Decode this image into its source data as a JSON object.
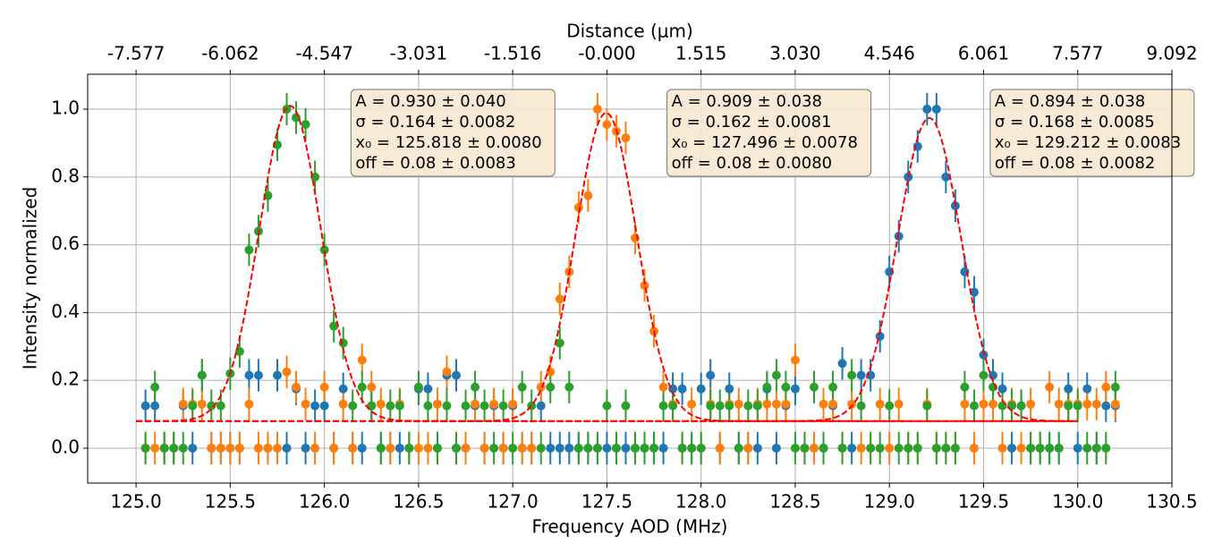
{
  "chart_data": {
    "type": "scatter",
    "xlabel": "Frequency AOD (MHz)",
    "ylabel": "Intensity normalized",
    "x2label": "Distance (μm)",
    "xlim": [
      124.743,
      130.5
    ],
    "ylim": [
      -0.103,
      1.103
    ],
    "x2lim": [
      -8.356,
      9.092
    ],
    "xticks": [
      {
        "value": 125,
        "label": "125.0"
      },
      125.5,
      {
        "value": 126,
        "label": "126.0"
      },
      126.5,
      {
        "value": 127,
        "label": "127.0"
      },
      127.5,
      {
        "value": 128,
        "label": "128.0"
      },
      128.5,
      {
        "value": 129,
        "label": "129.0"
      },
      129.5,
      {
        "value": 130,
        "label": "130.0"
      },
      130.5
    ],
    "yticks": [
      {
        "value": 0,
        "label": "0.0"
      },
      0.2,
      0.4,
      0.6,
      0.8,
      {
        "value": 1,
        "label": "1.0"
      }
    ],
    "x2ticks": [
      -7.577,
      -6.062,
      -4.547,
      -3.031,
      -1.516,
      {
        "value": 0,
        "label": "-0.000"
      },
      1.515,
      {
        "value": 3.03,
        "label": "3.030"
      },
      4.546,
      6.061,
      7.577,
      9.092
    ],
    "grid": true,
    "yerr": 0.048,
    "x": [
      125.05,
      125.1,
      125.15,
      125.2,
      125.25,
      125.3,
      125.35,
      125.4,
      125.45,
      125.5,
      125.55,
      125.6,
      125.65,
      125.7,
      125.75,
      125.8,
      125.85,
      125.9,
      125.95,
      126.0,
      126.05,
      126.1,
      126.15,
      126.2,
      126.25,
      126.3,
      126.35,
      126.4,
      126.45,
      126.5,
      126.55,
      126.6,
      126.65,
      126.7,
      126.75,
      126.8,
      126.85,
      126.9,
      126.95,
      127.0,
      127.05,
      127.1,
      127.15,
      127.2,
      127.25,
      127.3,
      127.35,
      127.4,
      127.45,
      127.5,
      127.55,
      127.6,
      127.65,
      127.7,
      127.75,
      127.8,
      127.85,
      127.9,
      127.95,
      128.0,
      128.05,
      128.1,
      128.15,
      128.2,
      128.25,
      128.3,
      128.35,
      128.4,
      128.45,
      128.5,
      128.55,
      128.6,
      128.65,
      128.7,
      128.75,
      128.8,
      128.85,
      128.9,
      128.95,
      129.0,
      129.05,
      129.1,
      129.15,
      129.2,
      129.25,
      129.3,
      129.35,
      129.4,
      129.45,
      129.5,
      129.55,
      129.6,
      129.65,
      129.7,
      129.75,
      129.8,
      129.85,
      129.9,
      129.95,
      130.0,
      130.05,
      130.1,
      130.15,
      130.2
    ],
    "series": [
      {
        "color": "#1f77b4",
        "values": [
          0.125,
          0.125,
          0,
          0,
          0.125,
          0,
          0.215,
          0,
          0,
          0,
          0,
          0.215,
          0.215,
          0,
          0.215,
          0,
          0.175,
          0,
          0.125,
          0.125,
          0,
          0.175,
          0,
          0,
          0.125,
          0,
          0,
          0,
          0,
          0.175,
          0.175,
          0,
          0.215,
          0.215,
          0,
          0.125,
          0,
          0.125,
          0,
          0.125,
          0,
          0,
          0.125,
          0,
          0,
          0,
          0,
          0,
          0,
          0,
          0,
          0,
          0,
          0,
          0,
          0,
          0.175,
          0.175,
          0,
          0.175,
          0.215,
          0,
          0.175,
          0,
          0,
          0,
          0.175,
          0,
          0.125,
          0.175,
          0,
          0,
          0,
          0.125,
          0.25,
          0,
          0.215,
          0.215,
          0.33,
          0.52,
          0.625,
          0.8,
          0.89,
          1.0,
          1.0,
          0.8,
          0.715,
          0.52,
          0.46,
          0.275,
          0.215,
          0.175,
          0,
          0.125,
          0,
          0,
          0,
          0,
          0.175,
          0,
          0.175,
          0,
          0.125,
          0.125
        ]
      },
      {
        "color": "#ff7f0e",
        "values": [
          0,
          0,
          0,
          0,
          0.13,
          0.13,
          0.13,
          0,
          0,
          0,
          0,
          0.13,
          0,
          0,
          0,
          0.225,
          0.18,
          0.13,
          0,
          0.18,
          0,
          0.13,
          0,
          0.26,
          0.18,
          0.13,
          0,
          0.13,
          0,
          0,
          0,
          0.13,
          0.225,
          0,
          0,
          0.13,
          0,
          0.13,
          0,
          0.13,
          0,
          0,
          0.18,
          0.225,
          0.44,
          0.52,
          0.71,
          0.745,
          1.0,
          0.955,
          0.935,
          0.915,
          0.62,
          0.48,
          0.345,
          0.18,
          0.13,
          0,
          0.13,
          0,
          0.13,
          0,
          0.13,
          0.13,
          0,
          0.13,
          0.13,
          0.13,
          0.13,
          0.26,
          0,
          0,
          0.13,
          0.13,
          0,
          0.13,
          0,
          0,
          0.13,
          0,
          0.13,
          0,
          0,
          0.13,
          0,
          0,
          0,
          0.13,
          0,
          0.13,
          0.13,
          0,
          0.13,
          0,
          0.13,
          0,
          0.18,
          0.13,
          0.13,
          0.13,
          0.13,
          0.13,
          0.18,
          0.13
        ]
      },
      {
        "color": "#2ca02c",
        "values": [
          0,
          0.18,
          0,
          0,
          0,
          0.125,
          0.215,
          0.125,
          0.125,
          0.22,
          0.285,
          0.585,
          0.64,
          0.745,
          0.895,
          1.0,
          0.975,
          0.955,
          0.8,
          0.585,
          0.36,
          0.31,
          0.125,
          0.18,
          0.125,
          0,
          0.125,
          0.125,
          0,
          0.18,
          0.125,
          0,
          0.125,
          0,
          0.125,
          0.18,
          0.125,
          0,
          0.125,
          0,
          0.18,
          0.125,
          0,
          0.18,
          0.31,
          0.18,
          0,
          0,
          0,
          0.125,
          0,
          0.125,
          0,
          0,
          0,
          0.125,
          0.125,
          0,
          0,
          0,
          0.125,
          0.125,
          0.125,
          0,
          0.125,
          0.125,
          0.18,
          0.215,
          0.18,
          0,
          0,
          0.18,
          0,
          0.18,
          0,
          0.215,
          0.125,
          0,
          0,
          0.125,
          0,
          0,
          0,
          0.125,
          0,
          0,
          0,
          0.18,
          0.125,
          0.215,
          0.18,
          0.125,
          0.125,
          0.125,
          0,
          0,
          0,
          0,
          0.125,
          0.125,
          0,
          0,
          0,
          0.18
        ]
      }
    ],
    "fit_color": "#ff0000",
    "fit_range": [
      125.0,
      130.0
    ],
    "fits": [
      {
        "A": 0.93,
        "sigma": 0.164,
        "x0": 125.818,
        "off": 0.08,
        "text": [
          "A = 0.930 ± 0.040",
          "σ = 0.164 ± 0.0082",
          "x₀ = 125.818 ± 0.0080",
          "off = 0.08 ± 0.0083"
        ]
      },
      {
        "A": 0.909,
        "sigma": 0.162,
        "x0": 127.496,
        "off": 0.08,
        "text": [
          "A = 0.909 ± 0.038",
          "σ = 0.162 ± 0.0081",
          "x₀ = 127.496 ± 0.0078",
          "off = 0.08 ± 0.0080"
        ]
      },
      {
        "A": 0.894,
        "sigma": 0.168,
        "x0": 129.212,
        "off": 0.08,
        "text": [
          "A = 0.894 ± 0.038",
          "σ = 0.168 ± 0.0085",
          "x₀ = 129.212 ± 0.0083",
          "off = 0.08 ± 0.0082"
        ]
      }
    ]
  }
}
